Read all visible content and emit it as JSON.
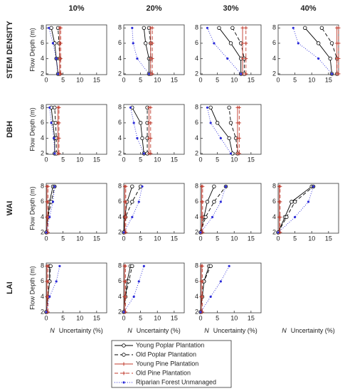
{
  "chart_data": {
    "type": "line",
    "columns": [
      "10%",
      "20%",
      "30%",
      "40%"
    ],
    "rows": [
      "STEM DENSITY",
      "DBH",
      "WAI",
      "LAI"
    ],
    "ylabel": "Flow Depth (m)",
    "xlabel_symbol": "N",
    "xlabel": "Uncertainty (%)",
    "xlim": [
      0,
      18
    ],
    "xticks": [
      0,
      5,
      10,
      15
    ],
    "ylim": [
      1.9,
      8.4
    ],
    "yticks": [
      2,
      4,
      6,
      8
    ],
    "depths": [
      2,
      4,
      6,
      8
    ],
    "series": [
      {
        "name": "Young Poplar Plantation",
        "color": "#000000",
        "dash": "solid",
        "marker": "circle"
      },
      {
        "name": "Old Poplar Plantation",
        "color": "#000000",
        "dash": "dashed",
        "marker": "circle"
      },
      {
        "name": "Young Pine Plantation",
        "color": "#c0392b",
        "dash": "solid",
        "marker": "plus"
      },
      {
        "name": "Old Pine Plantation",
        "color": "#c0392b",
        "dash": "dashed",
        "marker": "plus"
      },
      {
        "name": "Riparian Forest Unmanaged",
        "color": "#2b2bd9",
        "dash": "dotted",
        "marker": "dot"
      }
    ],
    "panels": [
      {
        "row": 0,
        "col": 0,
        "values": [
          [
            3.5,
            3,
            2.5,
            1.5
          ],
          [
            4,
            4,
            3.8,
            3.5
          ],
          [
            4,
            4,
            4,
            4
          ],
          [
            4.3,
            4.3,
            4.3,
            4.3
          ],
          [
            3.5,
            3,
            2,
            0.8
          ]
        ]
      },
      {
        "row": 0,
        "col": 1,
        "values": [
          [
            7.5,
            7.5,
            6.5,
            6
          ],
          [
            8,
            8,
            8,
            7.5
          ],
          [
            8,
            8,
            8,
            8
          ],
          [
            8.5,
            8.5,
            8.5,
            8.5
          ],
          [
            7.5,
            4,
            2.8,
            2.5
          ]
        ]
      },
      {
        "row": 0,
        "col": 2,
        "values": [
          [
            12,
            12,
            9,
            5.5
          ],
          [
            13,
            13,
            12,
            9.5
          ],
          [
            12.5,
            12.5,
            12.5,
            12.5
          ],
          [
            13.5,
            13.5,
            13.5,
            13.5
          ],
          [
            12,
            8,
            4,
            2
          ]
        ]
      },
      {
        "row": 0,
        "col": 3,
        "values": [
          [
            16,
            15.5,
            12,
            8
          ],
          [
            17.5,
            17.5,
            16,
            13
          ],
          [
            17.5,
            17.5,
            17.5,
            17.5
          ],
          [
            18,
            18,
            18,
            18
          ],
          [
            16,
            12,
            6,
            4.5
          ]
        ]
      },
      {
        "row": 1,
        "col": 0,
        "values": [
          [
            2.5,
            2.5,
            2,
            1.5
          ],
          [
            3,
            3,
            2.8,
            2.5
          ],
          [
            3.5,
            3.5,
            3.5,
            3.5
          ],
          [
            3.8,
            3.8,
            3.8,
            3.8
          ],
          [
            2.5,
            2.3,
            1.5,
            1
          ]
        ]
      },
      {
        "row": 1,
        "col": 1,
        "values": [
          [
            6,
            5.5,
            5,
            2.5
          ],
          [
            7,
            7,
            7,
            7
          ],
          [
            7.5,
            7.5,
            7.5,
            7.5
          ],
          [
            8,
            8,
            8,
            8
          ],
          [
            6,
            4,
            3,
            2
          ]
        ]
      },
      {
        "row": 1,
        "col": 2,
        "values": [
          [
            9.5,
            8.5,
            5,
            3
          ],
          [
            11,
            10.5,
            9,
            8.5
          ],
          [
            11,
            11,
            11,
            11
          ],
          [
            11.5,
            11.5,
            11.5,
            11.5
          ],
          [
            9,
            6,
            3,
            2
          ]
        ]
      },
      {
        "row": 2,
        "col": 0,
        "values": [
          [
            0,
            0.5,
            1,
            2
          ],
          [
            0,
            0.5,
            1.5,
            2.5
          ],
          [
            0.2,
            0.2,
            0.2,
            0.2
          ],
          [
            0.5,
            0.5,
            0.5,
            0.5
          ],
          [
            0,
            1,
            2,
            2.5
          ]
        ]
      },
      {
        "row": 2,
        "col": 1,
        "values": [
          [
            0,
            0.3,
            1,
            2.5
          ],
          [
            0,
            0.5,
            2.5,
            5
          ],
          [
            0.3,
            0.3,
            0.3,
            0.3
          ],
          [
            0.6,
            0.6,
            0.6,
            0.6
          ],
          [
            0,
            2.5,
            4.5,
            5.5
          ]
        ]
      },
      {
        "row": 2,
        "col": 2,
        "values": [
          [
            0,
            1,
            2,
            4
          ],
          [
            0,
            1.5,
            4,
            7.5
          ],
          [
            0.3,
            0.3,
            0.3,
            0.3
          ],
          [
            0.6,
            0.6,
            0.6,
            0.6
          ],
          [
            0,
            3.5,
            6,
            7.5
          ]
        ]
      },
      {
        "row": 2,
        "col": 3,
        "values": [
          [
            0,
            2,
            4,
            10
          ],
          [
            0,
            2.5,
            5,
            10.5
          ],
          [
            0.3,
            0.3,
            0.3,
            0.3
          ],
          [
            0.6,
            0.6,
            0.6,
            0.6
          ],
          [
            0,
            5,
            9,
            10.5
          ]
        ]
      },
      {
        "row": 3,
        "col": 0,
        "values": [
          [
            0,
            0.5,
            1,
            1
          ],
          [
            0,
            0.5,
            1,
            1.3
          ],
          [
            0.2,
            0.2,
            0.2,
            0.2
          ],
          [
            0.5,
            0.5,
            0.5,
            0.5
          ],
          [
            0,
            1,
            3,
            4
          ]
        ]
      },
      {
        "row": 3,
        "col": 1,
        "values": [
          [
            0,
            0.5,
            1,
            2
          ],
          [
            0,
            0.5,
            1.5,
            2.5
          ],
          [
            0.2,
            0.2,
            0.2,
            0.2
          ],
          [
            0.5,
            0.5,
            0.5,
            0.5
          ],
          [
            0,
            3,
            4.5,
            6
          ]
        ]
      },
      {
        "row": 3,
        "col": 2,
        "values": [
          [
            0,
            0.5,
            1,
            2.5
          ],
          [
            0,
            0.5,
            1,
            3
          ],
          [
            0.2,
            0.2,
            0.2,
            0.2
          ],
          [
            0.5,
            0.5,
            0.5,
            0.5
          ],
          [
            0,
            3,
            6,
            8.5
          ]
        ]
      }
    ]
  }
}
